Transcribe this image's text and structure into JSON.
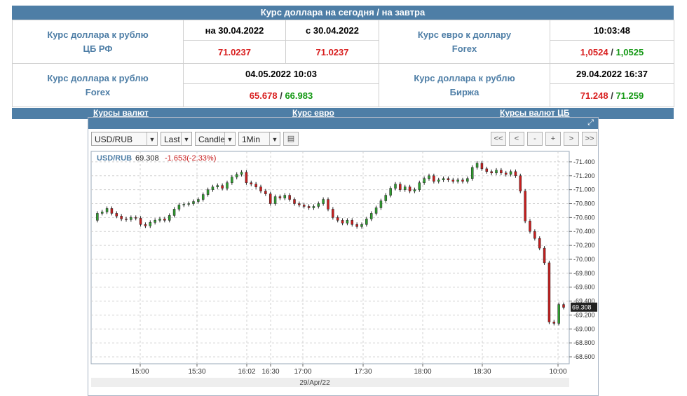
{
  "header": {
    "title": "Курс доллара на сегодня / на завтра"
  },
  "rates": {
    "usd_rub_cb": {
      "label_line1": "Курс доллара к рублю",
      "label_line2": "ЦБ РФ",
      "date_today": "на 30.04.2022",
      "date_tomorrow": "с 30.04.2022",
      "value_today": "71.0237",
      "value_tomorrow": "71.0237"
    },
    "eur_usd_forex": {
      "label_line1": "Курс евро к доллару",
      "label_line2": "Forex",
      "time": "10:03:48",
      "bid": "1,0524",
      "sep": "/",
      "ask": "1,0525"
    },
    "usd_rub_forex": {
      "label_line1": "Курс доллара к рублю",
      "label_line2": "Forex",
      "datetime": "04.05.2022 10:03",
      "bid": "65.678",
      "sep": "/",
      "ask": "66.983"
    },
    "usd_rub_exchange": {
      "label_line1": "Курс доллара к рублю",
      "label_line2": "Биржа",
      "datetime": "29.04.2022 16:37",
      "bid": "71.248",
      "sep": "/",
      "ask": "71.259"
    }
  },
  "links": [
    "Курсы валют",
    "Курс евро",
    "Курсы валют ЦБ"
  ],
  "toolbar": {
    "symbol": "USD/RUB",
    "price_type": "Last",
    "chart_style": "Candle",
    "interval": "1Min",
    "nav_buttons": [
      "<<",
      "<",
      "-",
      "+",
      ">",
      ">>"
    ]
  },
  "icons": {
    "expand": "expand-arrows-icon",
    "calendar": "table-icon",
    "dropdown": "triangle-down-icon"
  },
  "colors": {
    "brand_blue": "#4e7ea6",
    "up_candle": "#2f9e2f",
    "down_candle": "#c81e1e",
    "value_red": "#d81e1e",
    "value_green": "#159915"
  },
  "chart_data": {
    "type": "candlestick",
    "legend": {
      "symbol": "USD/RUB",
      "last": "69.308",
      "change": "-1.653(-2.33%)"
    },
    "current_price_label": "69.308",
    "date_label": "29/Apr/22",
    "x_ticks": [
      "15:00",
      "15:30",
      "16:02",
      "16:30",
      "17:00",
      "17:30",
      "18:00",
      "18:30",
      "10:00"
    ],
    "y_ticks": [
      "71.400",
      "71.200",
      "71.000",
      "70.800",
      "70.600",
      "70.400",
      "70.200",
      "70.000",
      "69.800",
      "69.600",
      "69.400",
      "69.200",
      "69.000",
      "68.800",
      "68.600"
    ],
    "ylim": [
      68.5,
      71.55
    ],
    "grid": true,
    "price_path": [
      [
        0,
        70.56
      ],
      [
        2,
        70.66
      ],
      [
        4,
        70.68
      ],
      [
        6,
        70.73
      ],
      [
        8,
        70.66
      ],
      [
        10,
        70.62
      ],
      [
        12,
        70.58
      ],
      [
        14,
        70.57
      ],
      [
        16,
        70.6
      ],
      [
        18,
        70.59
      ],
      [
        20,
        70.5
      ],
      [
        22,
        70.48
      ],
      [
        24,
        70.53
      ],
      [
        26,
        70.56
      ],
      [
        28,
        70.58
      ],
      [
        30,
        70.56
      ],
      [
        32,
        70.63
      ],
      [
        34,
        70.72
      ],
      [
        36,
        70.78
      ],
      [
        38,
        70.79
      ],
      [
        40,
        70.8
      ],
      [
        42,
        70.83
      ],
      [
        44,
        70.86
      ],
      [
        46,
        70.93
      ],
      [
        48,
        71.0
      ],
      [
        50,
        71.04
      ],
      [
        52,
        71.06
      ],
      [
        54,
        71.02
      ],
      [
        56,
        71.1
      ],
      [
        58,
        71.18
      ],
      [
        60,
        71.22
      ],
      [
        62,
        71.25
      ],
      [
        64,
        71.1
      ],
      [
        66,
        71.08
      ],
      [
        68,
        71.04
      ],
      [
        70,
        70.98
      ],
      [
        72,
        70.94
      ],
      [
        74,
        70.8
      ],
      [
        76,
        70.9
      ],
      [
        78,
        70.88
      ],
      [
        80,
        70.92
      ],
      [
        82,
        70.86
      ],
      [
        84,
        70.8
      ],
      [
        86,
        70.78
      ],
      [
        88,
        70.76
      ],
      [
        90,
        70.74
      ],
      [
        92,
        70.76
      ],
      [
        94,
        70.8
      ],
      [
        96,
        70.86
      ],
      [
        98,
        70.72
      ],
      [
        100,
        70.6
      ],
      [
        102,
        70.56
      ],
      [
        104,
        70.52
      ],
      [
        106,
        70.56
      ],
      [
        108,
        70.5
      ],
      [
        110,
        70.47
      ],
      [
        112,
        70.5
      ],
      [
        114,
        70.58
      ],
      [
        116,
        70.66
      ],
      [
        118,
        70.74
      ],
      [
        120,
        70.84
      ],
      [
        122,
        70.92
      ],
      [
        124,
        71.02
      ],
      [
        126,
        71.08
      ],
      [
        128,
        71.0
      ],
      [
        130,
        71.04
      ],
      [
        132,
        70.98
      ],
      [
        134,
        71.0
      ],
      [
        136,
        71.1
      ],
      [
        138,
        71.16
      ],
      [
        140,
        71.2
      ],
      [
        142,
        71.12
      ],
      [
        144,
        71.14
      ],
      [
        146,
        71.16
      ],
      [
        148,
        71.14
      ],
      [
        150,
        71.12
      ],
      [
        152,
        71.14
      ],
      [
        154,
        71.12
      ],
      [
        156,
        71.16
      ],
      [
        158,
        71.32
      ],
      [
        160,
        71.38
      ],
      [
        162,
        71.3
      ],
      [
        164,
        71.26
      ],
      [
        166,
        71.24
      ],
      [
        168,
        71.28
      ],
      [
        170,
        71.24
      ],
      [
        172,
        71.22
      ],
      [
        174,
        71.26
      ],
      [
        176,
        71.2
      ],
      [
        178,
        70.98
      ],
      [
        180,
        70.55
      ],
      [
        182,
        70.4
      ],
      [
        184,
        70.3
      ],
      [
        186,
        70.16
      ],
      [
        188,
        69.95
      ],
      [
        190,
        69.1
      ],
      [
        192,
        69.08
      ],
      [
        194,
        69.35
      ],
      [
        196,
        69.31
      ]
    ]
  }
}
